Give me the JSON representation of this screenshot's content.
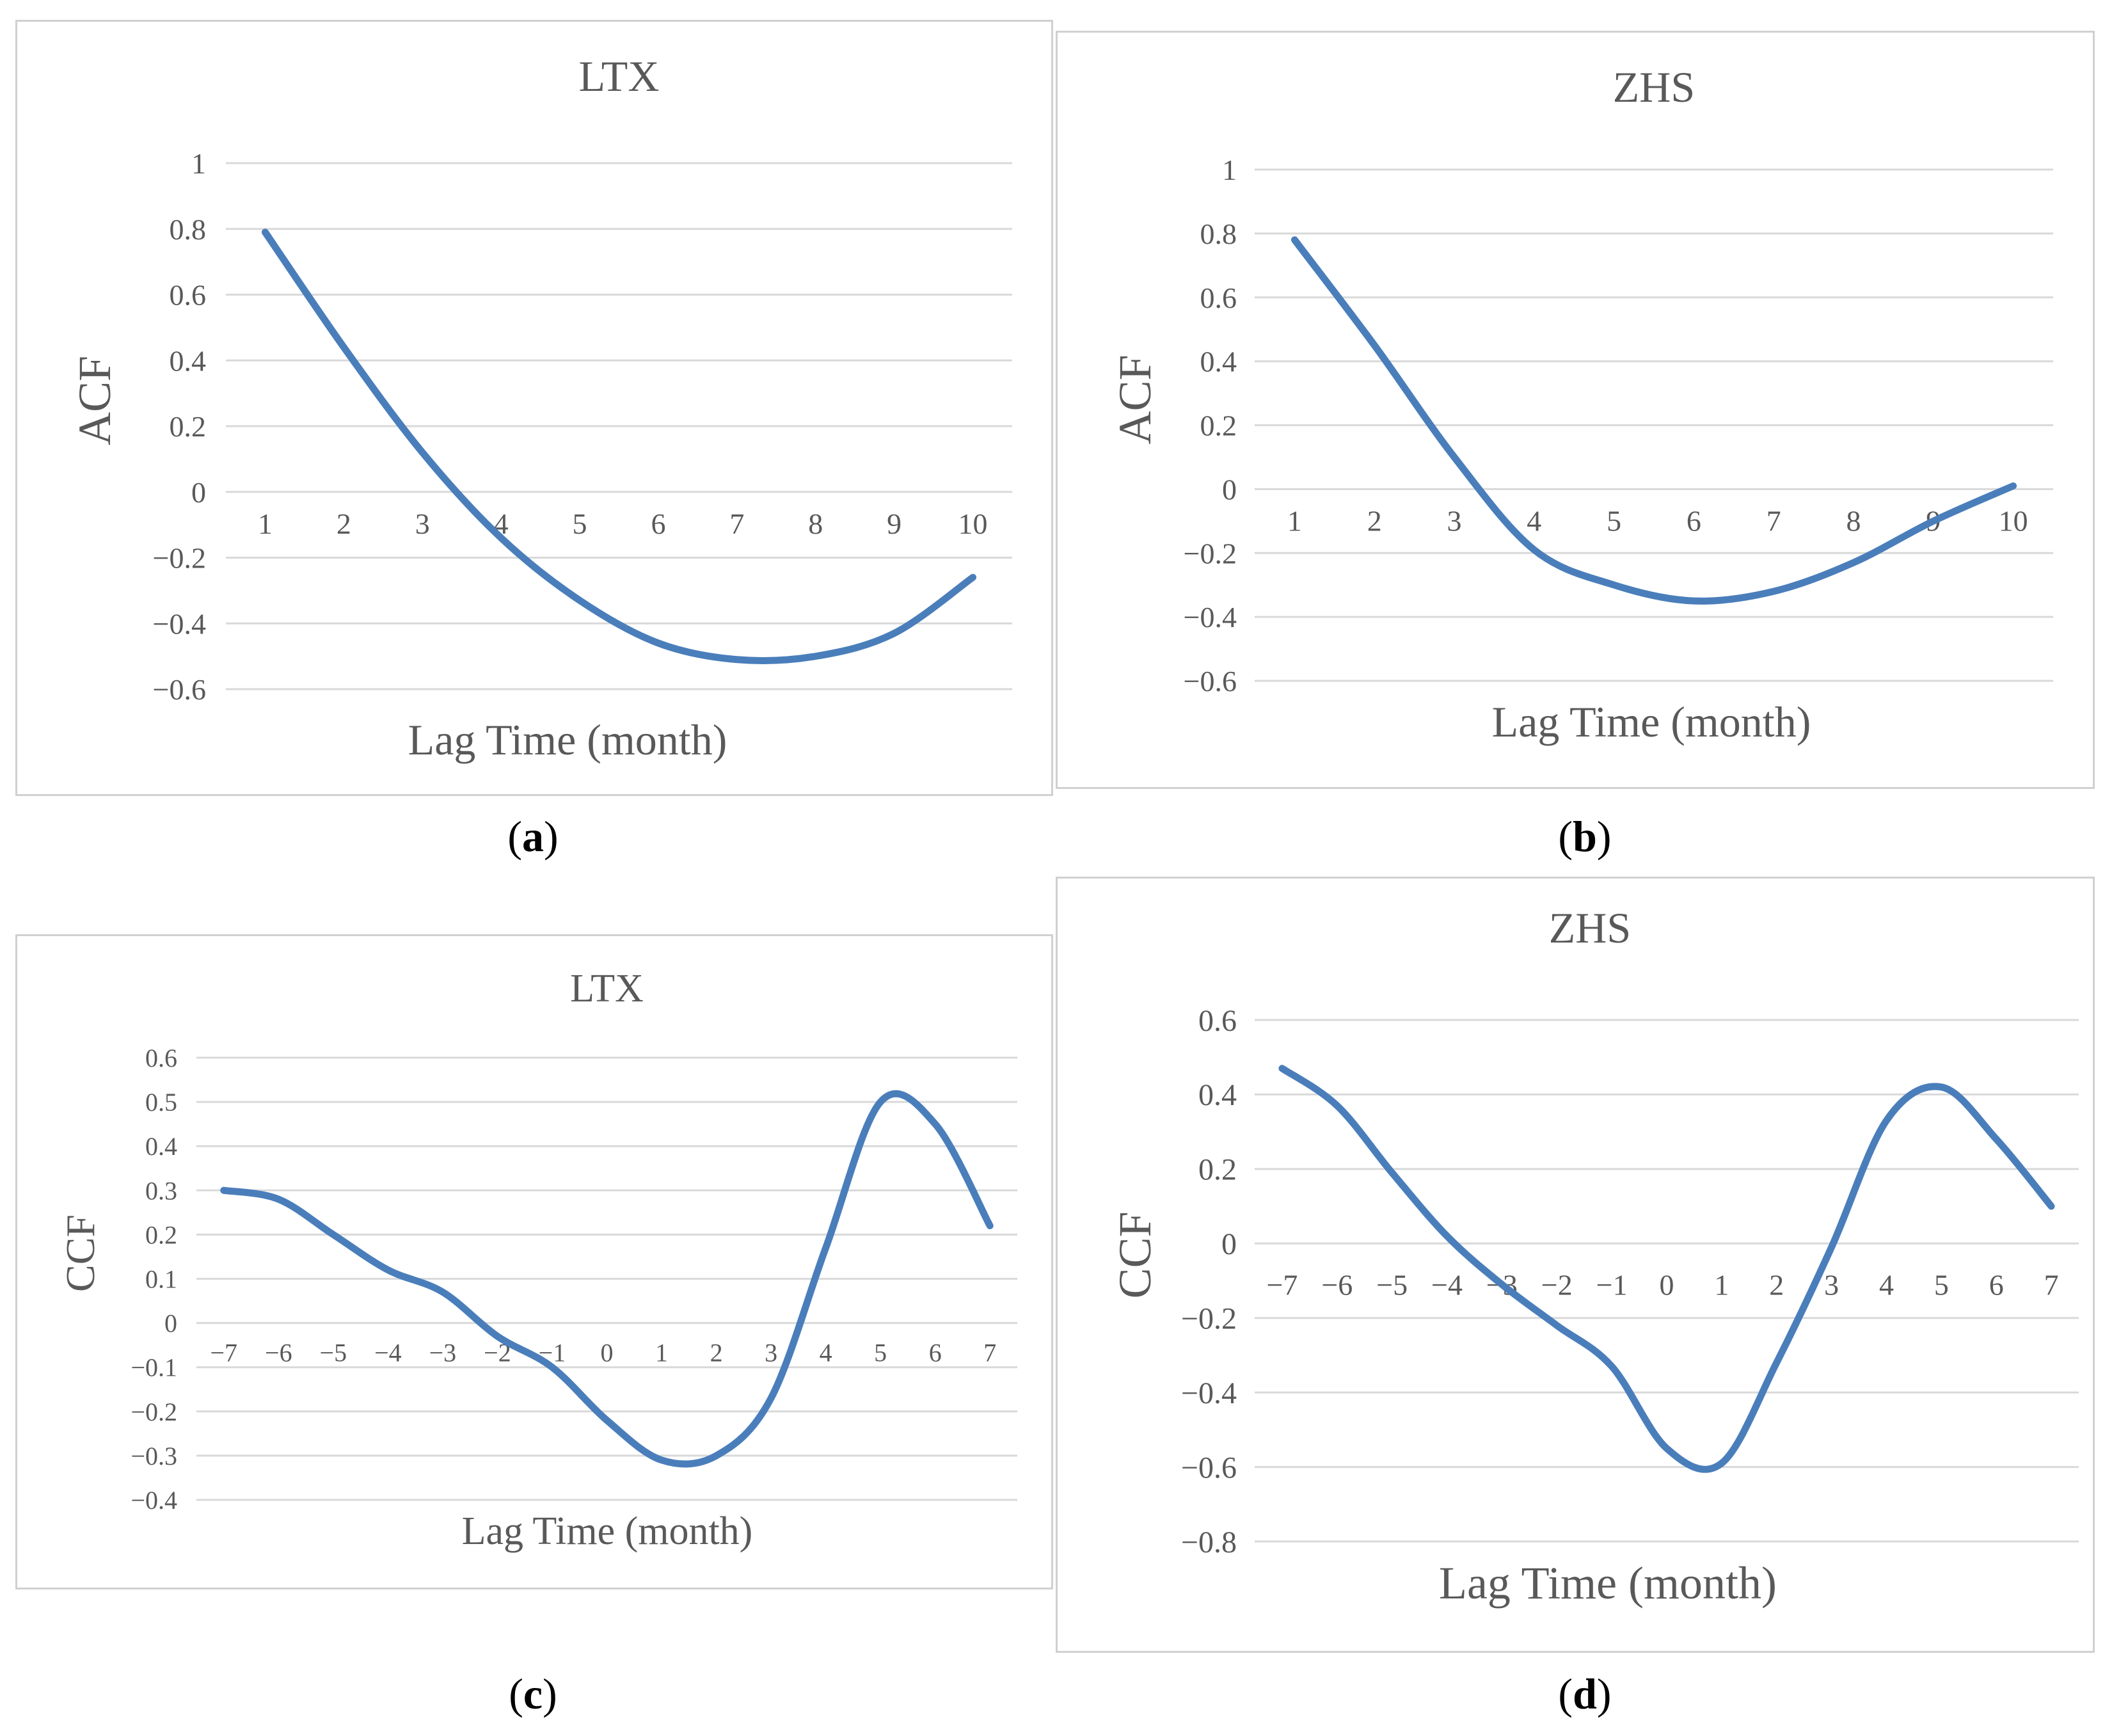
{
  "captions": {
    "a": {
      "open": "(",
      "letter": "a",
      "close": ")"
    },
    "b": {
      "open": "(",
      "letter": "b",
      "close": ")"
    },
    "c": {
      "open": "(",
      "letter": "c",
      "close": ")"
    },
    "d": {
      "open": "(",
      "letter": "d",
      "close": ")"
    }
  },
  "chart_data": [
    {
      "id": "a",
      "type": "line",
      "title": "LTX",
      "xlabel": "Lag Time (month)",
      "ylabel": "ACF",
      "categories": [
        "1",
        "2",
        "3",
        "4",
        "5",
        "6",
        "7",
        "8",
        "9",
        "10"
      ],
      "values": [
        0.79,
        0.44,
        0.12,
        -0.14,
        -0.33,
        -0.46,
        -0.51,
        -0.5,
        -0.43,
        -0.26
      ],
      "yticks": [
        "1",
        "0.8",
        "0.6",
        "0.4",
        "0.2",
        "0",
        "−0.2",
        "−0.4",
        "−0.6"
      ],
      "ylim": [
        -0.6,
        1
      ],
      "grid": true,
      "color": "#4a7ebb"
    },
    {
      "id": "b",
      "type": "line",
      "title": "ZHS",
      "xlabel": "Lag Time (month)",
      "ylabel": "ACF",
      "categories": [
        "1",
        "2",
        "3",
        "4",
        "5",
        "6",
        "7",
        "8",
        "9",
        "10"
      ],
      "values": [
        0.78,
        0.45,
        0.1,
        -0.19,
        -0.3,
        -0.35,
        -0.32,
        -0.23,
        -0.1,
        0.01
      ],
      "yticks": [
        "1",
        "0.8",
        "0.6",
        "0.4",
        "0.2",
        "0",
        "−0.2",
        "−0.4",
        "−0.6"
      ],
      "ylim": [
        -0.6,
        1
      ],
      "grid": true,
      "color": "#4a7ebb"
    },
    {
      "id": "c",
      "type": "line",
      "title": "LTX",
      "xlabel": "Lag Time (month)",
      "ylabel": "CCF",
      "categories": [
        "−7",
        "−6",
        "−5",
        "−4",
        "−3",
        "−2",
        "−1",
        "0",
        "1",
        "2",
        "3",
        "4",
        "5",
        "6",
        "7"
      ],
      "values": [
        0.3,
        0.28,
        0.2,
        0.12,
        0.07,
        -0.03,
        -0.1,
        -0.22,
        -0.31,
        -0.3,
        -0.17,
        0.17,
        0.5,
        0.45,
        0.22
      ],
      "yticks": [
        "0.6",
        "0.5",
        "0.4",
        "0.3",
        "0.2",
        "0.1",
        "0",
        "−0.1",
        "−0.2",
        "−0.3",
        "−0.4"
      ],
      "ylim": [
        -0.4,
        0.6
      ],
      "grid": true,
      "color": "#4a7ebb"
    },
    {
      "id": "d",
      "type": "line",
      "title": "ZHS",
      "xlabel": "Lag Time (month)",
      "ylabel": "CCF",
      "categories": [
        "−7",
        "−6",
        "−5",
        "−4",
        "−3",
        "−2",
        "−1",
        "0",
        "1",
        "2",
        "3",
        "4",
        "5",
        "6",
        "7"
      ],
      "values": [
        0.47,
        0.37,
        0.19,
        0.02,
        -0.11,
        -0.22,
        -0.33,
        -0.55,
        -0.59,
        -0.32,
        -0.01,
        0.33,
        0.42,
        0.28,
        0.1
      ],
      "yticks": [
        "0.6",
        "0.4",
        "0.2",
        "0",
        "−0.2",
        "−0.4",
        "−0.6",
        "−0.8"
      ],
      "ylim": [
        -0.8,
        0.6
      ],
      "grid": true,
      "color": "#4a7ebb"
    }
  ]
}
